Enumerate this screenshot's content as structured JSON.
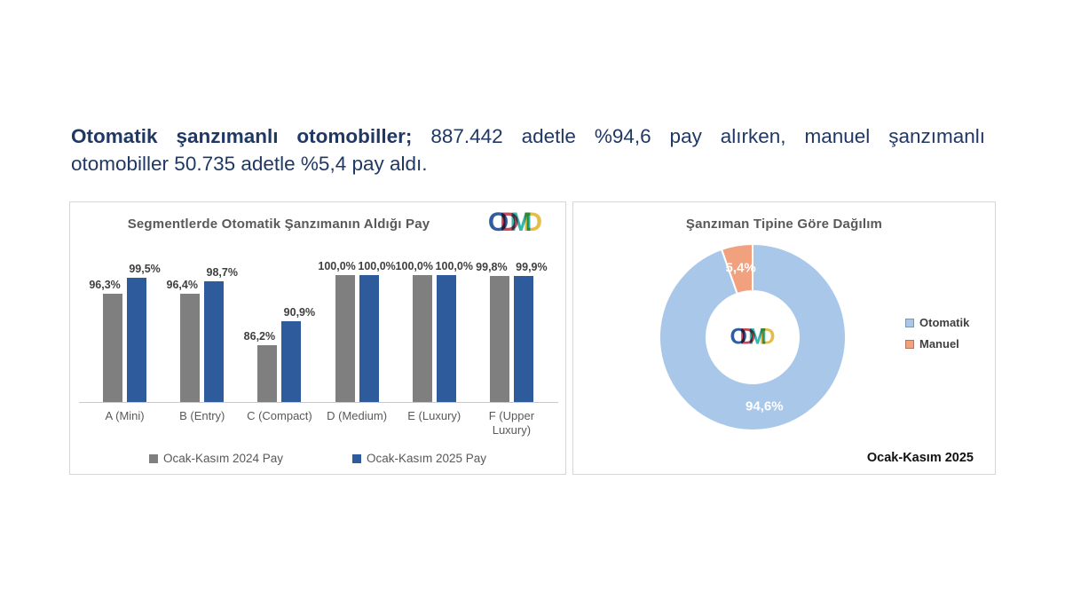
{
  "header": {
    "line1_bold": "Otomatik şanzımanlı otomobiller;",
    "line1_rest": " 887.442 adetle %94,6 pay alırken, manuel şanzımanlı",
    "line2": "otomobiller 50.735 adetle %5,4 pay aldı.",
    "color": "#1F3864"
  },
  "logo": {
    "name": "ODMD",
    "letters": [
      {
        "ch": "O",
        "color": "#2F5D9E"
      },
      {
        "ch": "D",
        "color": "#C64A5E"
      },
      {
        "ch": "M",
        "color": "#38B6AE"
      },
      {
        "ch": "D",
        "color": "#E5BD4A"
      }
    ]
  },
  "chart_data": [
    {
      "type": "bar",
      "title": "Segmentlerde Otomatik Şanzımanın Aldığı Pay",
      "categories": [
        "A (Mini)",
        "B (Entry)",
        "C (Compact)",
        "D (Medium)",
        "E (Luxury)",
        "F (Upper Luxury)"
      ],
      "series": [
        {
          "name": "Ocak-Kasım 2024 Pay",
          "color": "#7F7F7F",
          "values": [
            96.3,
            96.4,
            86.2,
            100.0,
            100.0,
            99.8
          ],
          "labels": [
            "96,3%",
            "96,4%",
            "86,2%",
            "100,0%",
            "100,0%",
            "99,8%"
          ]
        },
        {
          "name": "Ocak-Kasım 2025 Pay",
          "color": "#2E5B9B",
          "values": [
            99.5,
            98.7,
            90.9,
            100.0,
            100.0,
            99.9
          ],
          "labels": [
            "99,5%",
            "98,7%",
            "90,9%",
            "100,0%",
            "100,0%",
            "99,9%"
          ]
        }
      ],
      "ylim": [
        75,
        100
      ],
      "grid": false,
      "legend_position": "bottom"
    },
    {
      "type": "donut",
      "title": "Şanzıman Tipine Göre Dağılım",
      "slices": [
        {
          "name": "Otomatik",
          "value": 94.6,
          "label": "94,6%",
          "color": "#A9C7E9"
        },
        {
          "name": "Manuel",
          "value": 5.4,
          "label": "5,4%",
          "color": "#F2A17E"
        }
      ],
      "start_angle_deg": 0,
      "footer": "Ocak-Kasım 2025",
      "legend_position": "right"
    }
  ]
}
